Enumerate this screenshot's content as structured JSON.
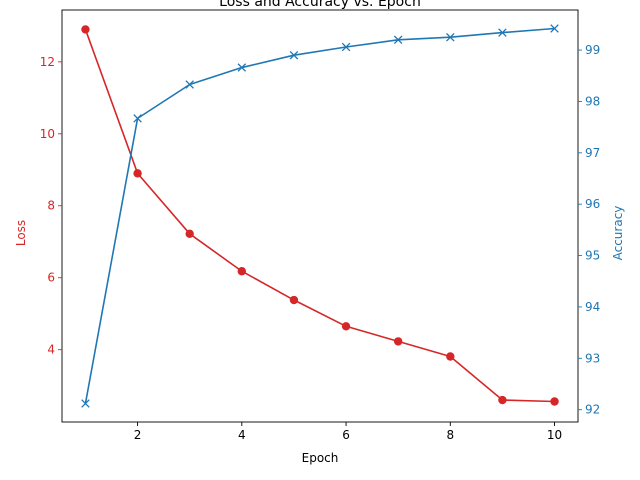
{
  "chart_data": {
    "type": "line",
    "title": "Loss and Accuracy vs. Epoch",
    "xlabel": "Epoch",
    "x": [
      1,
      2,
      3,
      4,
      5,
      6,
      7,
      8,
      9,
      10
    ],
    "xticks": [
      2,
      4,
      6,
      8,
      10
    ],
    "xlim": [
      0.55,
      10.45
    ],
    "grid": false,
    "series": [
      {
        "name": "Loss",
        "axis": "left",
        "color": "#d62728",
        "marker": "circle",
        "values": [
          12.9,
          8.9,
          7.22,
          6.18,
          5.38,
          4.65,
          4.23,
          3.81,
          2.6,
          2.56
        ]
      },
      {
        "name": "Accuracy",
        "axis": "right",
        "color": "#1f77b4",
        "marker": "x",
        "values": [
          92.12,
          97.67,
          98.33,
          98.66,
          98.9,
          99.06,
          99.2,
          99.25,
          99.34,
          99.42
        ]
      }
    ],
    "left_axis": {
      "label": "Loss",
      "color": "#d62728",
      "ylim": [
        1.99,
        13.44
      ],
      "ticks": [
        4,
        6,
        8,
        10,
        12
      ]
    },
    "right_axis": {
      "label": "Accuracy",
      "color": "#1f77b4",
      "ylim": [
        91.76,
        99.78
      ],
      "ticks": [
        92,
        93,
        94,
        95,
        96,
        97,
        98,
        99
      ]
    }
  }
}
